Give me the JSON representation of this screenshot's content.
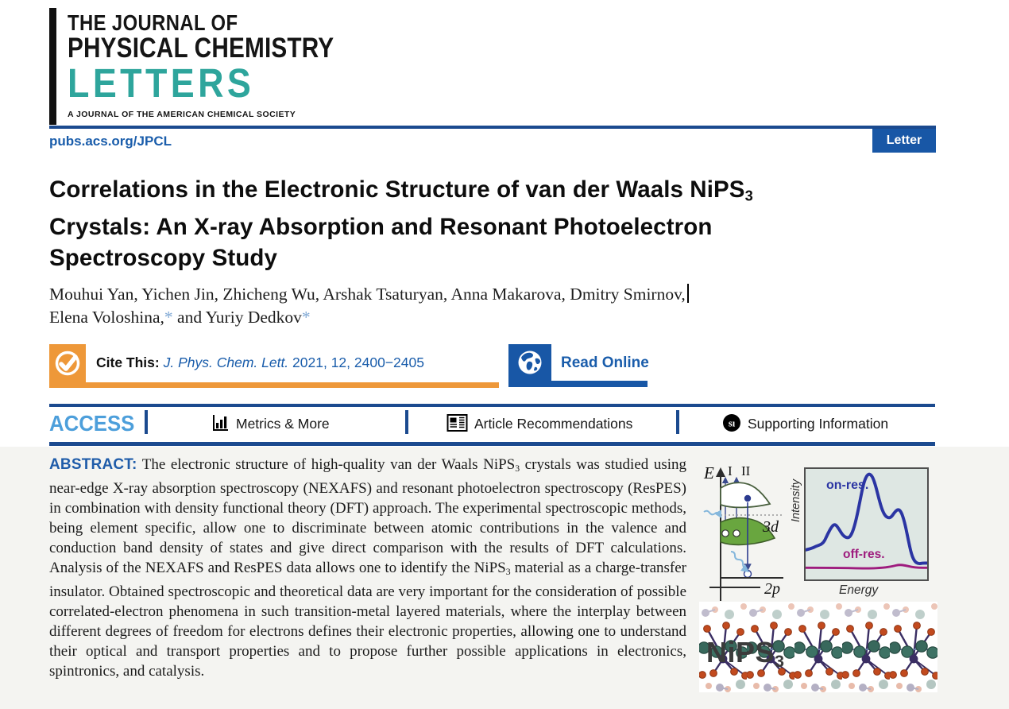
{
  "journal": {
    "name_line1": "THE JOURNAL OF",
    "name_line2": "PHYSICAL CHEMISTRY",
    "name_line3": "LETTERS",
    "tagline": "A JOURNAL OF THE AMERICAN CHEMICAL SOCIETY",
    "teal": "#2ea59c"
  },
  "masthead": {
    "url": "pubs.acs.org/JPCL",
    "badge": "Letter"
  },
  "article": {
    "title_segments": [
      {
        "t": "Correlations in the Electronic Structure of van der Waals NiPS"
      },
      {
        "t": "3",
        "s": "sub"
      },
      {
        "br": true
      },
      {
        "t": "Crystals: An X-ray Absorption and Resonant Photoelectron"
      },
      {
        "br": true
      },
      {
        "t": "Spectroscopy Study"
      }
    ],
    "authors_line1_segments": [
      {
        "t": "Mouhui Yan, Yichen Jin, Zhicheng Wu, Arshak Tsaturyan, Anna Makarova, Dmitry Smirnov,"
      },
      {
        "t": "",
        "s": "caret"
      }
    ],
    "authors_line2_segments": [
      {
        "t": "Elena Voloshina,"
      },
      {
        "t": "*",
        "s": "star"
      },
      {
        "t": " and Yuriy Dedkov"
      },
      {
        "t": "*",
        "s": "star"
      }
    ]
  },
  "cite": {
    "label": "Cite This:",
    "ref_italic": "J. Phys. Chem. Lett.",
    "ref_rest": " 2021, 12, 2400−2405",
    "read_online": "Read Online"
  },
  "access_bar": {
    "access_label": "ACCESS",
    "items": [
      {
        "icon": "bar-chart-icon",
        "label": "Metrics & More"
      },
      {
        "icon": "article-icon",
        "label": "Article Recommendations"
      },
      {
        "icon": "si-circle-icon",
        "label": "Supporting Information"
      }
    ]
  },
  "abstract": {
    "segments": [
      {
        "t": "ABSTRACT:",
        "s": "label"
      },
      {
        "t": " The electronic structure of high-quality van der Waals NiPS"
      },
      {
        "t": "3",
        "s": "sub"
      },
      {
        "t": " crystals was studied using near-edge X-ray absorption spectroscopy (NEXAFS) and resonant photoelectron spectroscopy (ResPES) in combination with density functional theory (DFT) approach. The experimental spectroscopic methods, being element specific, allow one to discriminate between atomic contributions in the valence and conduction band density of states and give direct comparison with the results of DFT calculations. Analysis of the NEXAFS and ResPES data allows one to identify the NiPS"
      },
      {
        "t": "3",
        "s": "sub"
      },
      {
        "t": " material as a charge-transfer insulator. Obtained spectroscopic and theoretical data are very important for the consideration of possible correlated-electron phenomena in such transition-metal layered materials, where the interplay between different degrees of freedom for electrons defines their electronic properties, allowing one to understand their optical and transport properties and to propose further possible applications in electronics, spintronics, and catalysis."
      }
    ],
    "label_color": "#1f5ca9"
  },
  "toc_graphic": {
    "diagram": {
      "axis_label": "E",
      "arrow1_label": "I",
      "arrow2_label": "II",
      "band_label": "3d",
      "core_label": "2p"
    },
    "plot": {
      "on_label": "on-res.",
      "off_label": "off-res.",
      "x_label": "Energy",
      "y_label": "Intensity",
      "on_color": "#2b35a3",
      "off_color": "#9e1c7e",
      "background": "#dee7e3",
      "on_points": [
        [
          0,
          104
        ],
        [
          8,
          102
        ],
        [
          14,
          99
        ],
        [
          20,
          97
        ],
        [
          24,
          93
        ],
        [
          28,
          84
        ],
        [
          34,
          73
        ],
        [
          38,
          71
        ],
        [
          42,
          76
        ],
        [
          48,
          86
        ],
        [
          54,
          89
        ],
        [
          58,
          86
        ],
        [
          62,
          76
        ],
        [
          66,
          60
        ],
        [
          70,
          40
        ],
        [
          74,
          20
        ],
        [
          78,
          9
        ],
        [
          82,
          6
        ],
        [
          86,
          10
        ],
        [
          90,
          22
        ],
        [
          94,
          38
        ],
        [
          98,
          52
        ],
        [
          102,
          60
        ],
        [
          106,
          63
        ],
        [
          110,
          62
        ],
        [
          114,
          56
        ],
        [
          118,
          52
        ],
        [
          121,
          53
        ],
        [
          124,
          58
        ],
        [
          128,
          72
        ],
        [
          132,
          92
        ],
        [
          136,
          110
        ],
        [
          140,
          119
        ],
        [
          145,
          122
        ],
        [
          150,
          121
        ],
        [
          156,
          121
        ]
      ],
      "off_points": [
        [
          0,
          127
        ],
        [
          40,
          127
        ],
        [
          80,
          128
        ],
        [
          100,
          127
        ],
        [
          112,
          125
        ],
        [
          120,
          123
        ],
        [
          128,
          124
        ],
        [
          136,
          126
        ],
        [
          145,
          127
        ],
        [
          156,
          127
        ]
      ]
    },
    "crystal_label_segments": [
      {
        "t": "NiPS"
      },
      {
        "t": "3",
        "s": "sub2"
      }
    ]
  },
  "colors": {
    "navy_rule": "#1b4a8f",
    "badge_blue": "#1857a6",
    "link_blue": "#1a5dab",
    "access_light_blue": "#4d9fdb",
    "cite_orange": "#ee9839",
    "abstract_background": "#f4f4f1",
    "logo_teal": "#2ea59c",
    "band_green": "#69a63f"
  },
  "icons": {
    "check-circle-icon": "cite-this checkmark",
    "globe-icon": "read online globe",
    "bar-chart-icon": "metrics bar chart",
    "article-icon": "article recommendations page",
    "si-circle-icon": "supporting information circle",
    "text-cursor": "text caret after authors line 1"
  }
}
